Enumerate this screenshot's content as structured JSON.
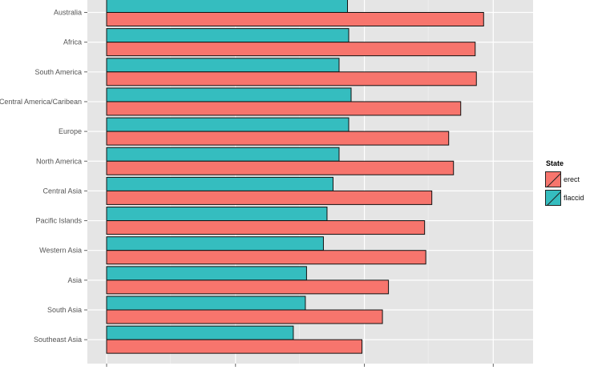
{
  "chart_data": {
    "type": "bar",
    "orientation": "horizontal",
    "title": "",
    "xlabel": "",
    "ylabel": "",
    "categories": [
      "Australia",
      "Africa",
      "South America",
      "Central America/Caribean",
      "Europe",
      "North America",
      "Central Asia",
      "Pacific Islands",
      "Western Asia",
      "Asia",
      "South Asia",
      "Southeast Asia"
    ],
    "series": [
      {
        "name": "flaccid",
        "color": "#35bdbf",
        "values": [
          10.0,
          10.05,
          9.65,
          10.15,
          10.05,
          9.65,
          9.4,
          9.15,
          9.0,
          8.3,
          8.25,
          7.75
        ]
      },
      {
        "name": "erect",
        "color": "#f7756d",
        "values": [
          15.65,
          15.3,
          15.35,
          14.7,
          14.2,
          14.4,
          13.5,
          13.2,
          13.25,
          11.7,
          11.45,
          10.6
        ]
      }
    ],
    "xlim": [
      0,
      16.3
    ],
    "grid": true,
    "legend": {
      "title": "State",
      "position": "right"
    }
  }
}
